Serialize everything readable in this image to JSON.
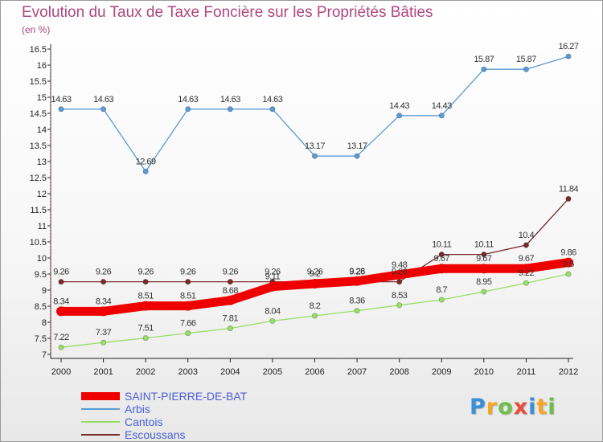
{
  "chart_data": {
    "type": "line",
    "title": "Evolution du Taux de Taxe Foncière sur les Propriétés Bâties",
    "ylabel": "(en %)",
    "xlabel": "",
    "x": [
      "2000",
      "2001",
      "2002",
      "2003",
      "2004",
      "2005",
      "2006",
      "2007",
      "2008",
      "2009",
      "2010",
      "2011",
      "2012"
    ],
    "ylim": [
      7,
      16.5
    ],
    "yticks": [
      "7",
      "7.5",
      "8",
      "8.5",
      "9",
      "9.5",
      "10",
      "10.5",
      "11",
      "11.5",
      "12",
      "12.5",
      "13",
      "13.5",
      "14",
      "14.5",
      "15",
      "15.5",
      "16",
      "16.5"
    ],
    "grid": false,
    "legend_position": "bottom-left",
    "series": [
      {
        "name": "SAINT-PIERRE-DE-BAT",
        "color": "#ee0000",
        "values": [
          8.34,
          8.34,
          8.51,
          8.51,
          8.68,
          9.11,
          9.2,
          9.28,
          9.48,
          9.67,
          9.67,
          9.67,
          9.86
        ],
        "labels": [
          "8.34",
          "8.34",
          "8.51",
          "8.51",
          "8.68",
          "9.11",
          "9.2",
          "9.28",
          "9.48",
          "9.67",
          "9.67",
          "9.67",
          "9.86"
        ]
      },
      {
        "name": "Arbis",
        "color": "#5b9bd5",
        "values": [
          14.63,
          14.63,
          12.69,
          14.63,
          14.63,
          14.63,
          13.17,
          13.17,
          14.43,
          14.43,
          15.87,
          15.87,
          16.27
        ],
        "labels": [
          "14.63",
          "14.63",
          "12.69",
          "14.63",
          "14.63",
          "14.63",
          "13.17",
          "13.17",
          "14.43",
          "14.43",
          "15.87",
          "15.87",
          "16.27"
        ]
      },
      {
        "name": "Cantois",
        "color": "#99dd66",
        "values": [
          7.22,
          7.37,
          7.51,
          7.66,
          7.81,
          8.04,
          8.2,
          8.36,
          8.53,
          8.7,
          8.95,
          9.22,
          9.5
        ],
        "labels": [
          "7.22",
          "7.37",
          "7.51",
          "7.66",
          "7.81",
          "8.04",
          "8.2",
          "8.36",
          "8.53",
          "8.7",
          "8.95",
          "9.22",
          "9.5"
        ]
      },
      {
        "name": "Escoussans",
        "color": "#7a2a2a",
        "values": [
          9.26,
          9.26,
          9.26,
          9.26,
          9.26,
          9.26,
          9.26,
          9.26,
          9.26,
          10.11,
          10.11,
          10.4,
          11.84
        ],
        "labels": [
          "9.26",
          "9.26",
          "9.26",
          "9.26",
          "9.26",
          "9.26",
          "9.26",
          "9.26",
          "9.26",
          "10.11",
          "10.11",
          "10.4",
          "11.84"
        ]
      }
    ]
  },
  "branding": {
    "logo_letters": [
      "P",
      "r",
      "o",
      "x",
      "i",
      "t",
      "i"
    ],
    "logo_colors": [
      "#3b8fd6",
      "#f5a623",
      "#6cc04a",
      "#e94e3c",
      "#3b8fd6",
      "#f5a623",
      "#6cc04a"
    ]
  }
}
